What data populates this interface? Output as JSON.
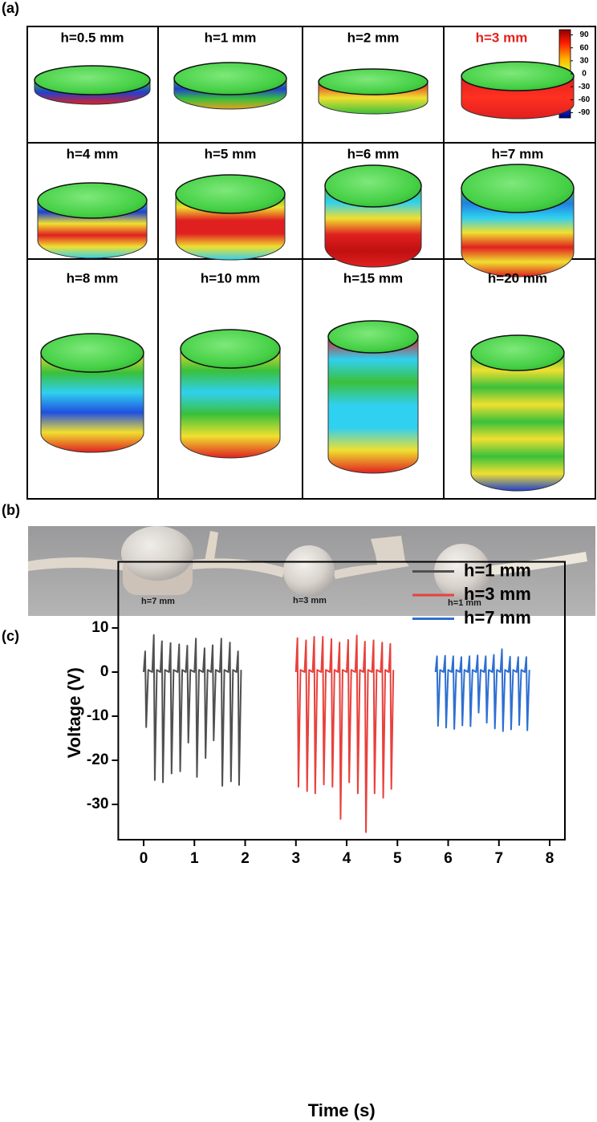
{
  "panel_a": {
    "label": "(a)",
    "cells": [
      {
        "label": "h=0.5 mm"
      },
      {
        "label": "h=1 mm"
      },
      {
        "label": "h=2 mm"
      },
      {
        "label": "h=3 mm",
        "color": "#e3201b"
      },
      {
        "label": "h=4 mm"
      },
      {
        "label": "h=5 mm"
      },
      {
        "label": "h=6 mm"
      },
      {
        "label": "h=7 mm"
      },
      {
        "label": "h=8 mm"
      },
      {
        "label": "h=10 mm"
      },
      {
        "label": "h=15 mm"
      },
      {
        "label": "h=20 mm"
      }
    ],
    "colorbar": {
      "lim": [
        -102,
        102
      ],
      "ticks": [
        90,
        60,
        30,
        0,
        -30,
        -60,
        -90
      ]
    }
  },
  "panel_b": {
    "label": "(b)",
    "labels": [
      "h=7 mm",
      "h=3 mm",
      "h=1 mm"
    ]
  },
  "panel_c": {
    "label": "(c)"
  },
  "chart_data": {
    "type": "line",
    "xlabel": "Time (s)",
    "ylabel": "Voltage (V)",
    "xlim": [
      -0.5,
      8.3
    ],
    "ylim": [
      -38,
      25
    ],
    "xticks": [
      0,
      1,
      2,
      3,
      4,
      5,
      6,
      7,
      8
    ],
    "yticks": [
      10,
      0,
      -10,
      -20,
      -30
    ],
    "legend": "upper right",
    "series": [
      {
        "name": "h=1 mm",
        "color": "#505050",
        "x": [
          0,
          0.03,
          0.05,
          0.09,
          0.17,
          0.2,
          0.22,
          0.26,
          0.33,
          0.36,
          0.38,
          0.42,
          0.5,
          0.53,
          0.55,
          0.59,
          0.67,
          0.7,
          0.72,
          0.76,
          0.83,
          0.86,
          0.88,
          0.92,
          1.0,
          1.03,
          1.05,
          1.09,
          1.17,
          1.2,
          1.22,
          1.26,
          1.33,
          1.36,
          1.38,
          1.42,
          1.5,
          1.53,
          1.55,
          1.59,
          1.67,
          1.7,
          1.72,
          1.76,
          1.83,
          1.86,
          1.88,
          1.92
        ],
        "values": [
          0,
          4.7,
          -12.5,
          0.5,
          0,
          8.4,
          -24.5,
          0.5,
          0,
          7,
          -25,
          0.5,
          0,
          6.6,
          -23,
          0.5,
          0,
          6.3,
          -22.5,
          0.5,
          0,
          6,
          -16,
          0.5,
          0,
          7.6,
          -23.8,
          0.5,
          0,
          5.4,
          -19.5,
          0.5,
          0,
          6.1,
          -15.5,
          0.5,
          0,
          7.6,
          -25.8,
          0.5,
          0,
          6.7,
          -24.8,
          0.5,
          0,
          4.7,
          -25.6,
          0.5
        ]
      },
      {
        "name": "h=3 mm",
        "color": "#e8413c",
        "x": [
          3,
          3.03,
          3.05,
          3.09,
          3.17,
          3.2,
          3.22,
          3.26,
          3.33,
          3.36,
          3.38,
          3.42,
          3.5,
          3.53,
          3.55,
          3.59,
          3.67,
          3.7,
          3.72,
          3.76,
          3.83,
          3.86,
          3.88,
          3.92,
          4,
          4.03,
          4.05,
          4.09,
          4.17,
          4.2,
          4.22,
          4.26,
          4.33,
          4.36,
          4.38,
          4.42,
          4.5,
          4.53,
          4.55,
          4.59,
          4.67,
          4.7,
          4.72,
          4.76,
          4.83,
          4.86,
          4.88,
          4.92
        ],
        "values": [
          0,
          7.7,
          -26,
          0.5,
          0,
          7.2,
          -27,
          0.5,
          0,
          8,
          -27.5,
          0.5,
          0,
          8,
          -25.5,
          0.5,
          0,
          7.5,
          -26,
          0.5,
          0,
          6.7,
          -33.3,
          0.5,
          0,
          7.3,
          -25,
          0.5,
          0,
          8.3,
          -27.5,
          0.5,
          0,
          6.9,
          -36.3,
          0.5,
          0,
          7.2,
          -27.5,
          0.5,
          0,
          6.7,
          -28.5,
          0.5,
          0,
          6.4,
          -26.5,
          0.5
        ]
      },
      {
        "name": "h=7 mm",
        "color": "#2e6fd1",
        "x": [
          5.75,
          5.78,
          5.8,
          5.84,
          5.91,
          5.94,
          5.96,
          6,
          6.07,
          6.1,
          6.12,
          6.16,
          6.23,
          6.26,
          6.28,
          6.32,
          6.39,
          6.42,
          6.44,
          6.48,
          6.55,
          6.58,
          6.6,
          6.64,
          6.71,
          6.74,
          6.76,
          6.8,
          6.87,
          6.9,
          6.92,
          6.96,
          7.03,
          7.06,
          7.08,
          7.12,
          7.19,
          7.22,
          7.24,
          7.28,
          7.35,
          7.38,
          7.4,
          7.44,
          7.51,
          7.54,
          7.56,
          7.6
        ],
        "values": [
          0,
          3.6,
          -12.2,
          0.5,
          0,
          3.7,
          -12.6,
          0.5,
          0,
          3.6,
          -12.9,
          0.5,
          0,
          3.4,
          -12.1,
          0.5,
          0,
          3.6,
          -12.3,
          0.5,
          0,
          3.8,
          -9.2,
          0.5,
          0,
          3.6,
          -11.5,
          0.5,
          0,
          3.9,
          -12.8,
          0.5,
          0,
          5.2,
          -13.4,
          0.5,
          0,
          3.5,
          -13,
          0.5,
          0,
          3.4,
          -12,
          0.5,
          0,
          3.4,
          -13.2,
          0.5
        ]
      }
    ]
  }
}
